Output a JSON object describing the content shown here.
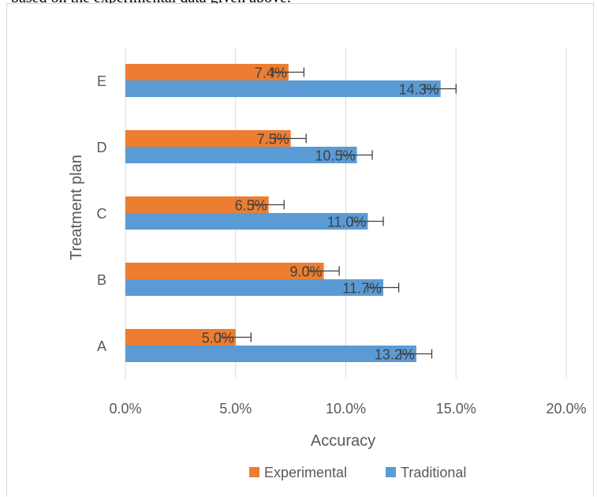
{
  "caption": "based on the experimental data given above.",
  "colors": {
    "experimental": "#ed7d31",
    "traditional": "#5b9bd5",
    "grid": "#d9d9d9",
    "error_bar": "#404040"
  },
  "chart_data": {
    "type": "bar",
    "orientation": "horizontal",
    "categories": [
      "A",
      "B",
      "C",
      "D",
      "E"
    ],
    "series": [
      {
        "name": "Experimental",
        "values": [
          5.0,
          9.0,
          6.5,
          7.5,
          7.4
        ],
        "labels": [
          "5.0%",
          "9.0%",
          "6.5%",
          "7.5%",
          "7.4%"
        ],
        "error": 0.7
      },
      {
        "name": "Traditional",
        "values": [
          13.2,
          11.7,
          11.0,
          10.5,
          14.3
        ],
        "labels": [
          "13.2%",
          "11.7%",
          "11.0%",
          "10.5%",
          "14.3%"
        ],
        "error": 0.7
      }
    ],
    "xlabel": "Accuracy",
    "ylabel": "Treatment plan",
    "xlim": [
      0,
      20
    ],
    "xticks": [
      0,
      5,
      10,
      15,
      20
    ],
    "xtick_labels": [
      "0.0%",
      "5.0%",
      "10.0%",
      "15.0%",
      "20.0%"
    ],
    "grid": true,
    "error_bars": true,
    "legend_position": "bottom",
    "legend": [
      "Experimental",
      "Traditional"
    ]
  }
}
